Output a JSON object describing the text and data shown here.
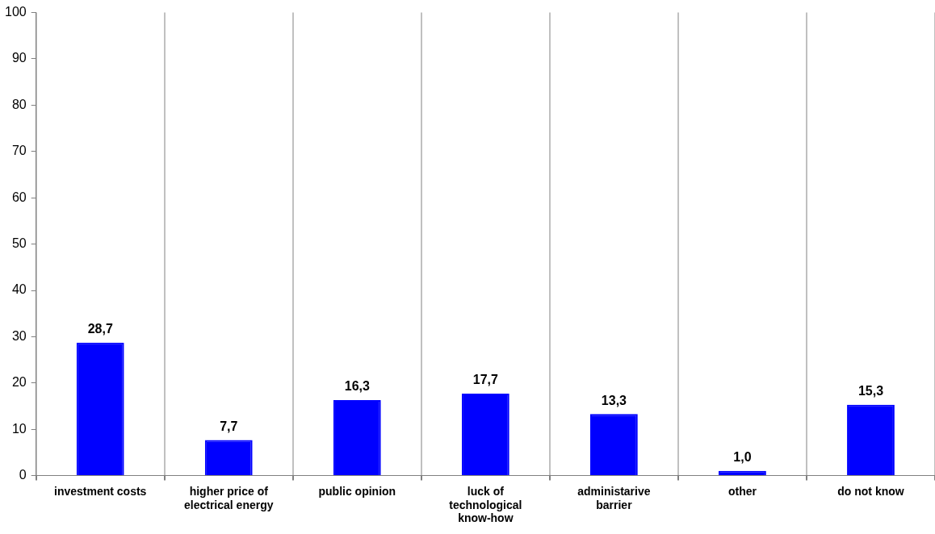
{
  "chart_data": {
    "type": "bar",
    "categories": [
      "investment costs",
      "higher price of electrical energy",
      "public opinion",
      "luck of technological know-how",
      "administarive barrier",
      "other",
      "do not know"
    ],
    "values": [
      28.7,
      7.7,
      16.3,
      17.7,
      13.3,
      1.0,
      15.3
    ],
    "value_labels": [
      "28,7",
      "7,7",
      "16,3",
      "17,7",
      "13,3",
      "1,0",
      "15,3"
    ],
    "color": "#0000ff",
    "ylim": [
      0,
      100
    ],
    "yticks": [
      0,
      10,
      20,
      30,
      40,
      50,
      60,
      70,
      80,
      90,
      100
    ],
    "grid": "x",
    "legend": false
  }
}
